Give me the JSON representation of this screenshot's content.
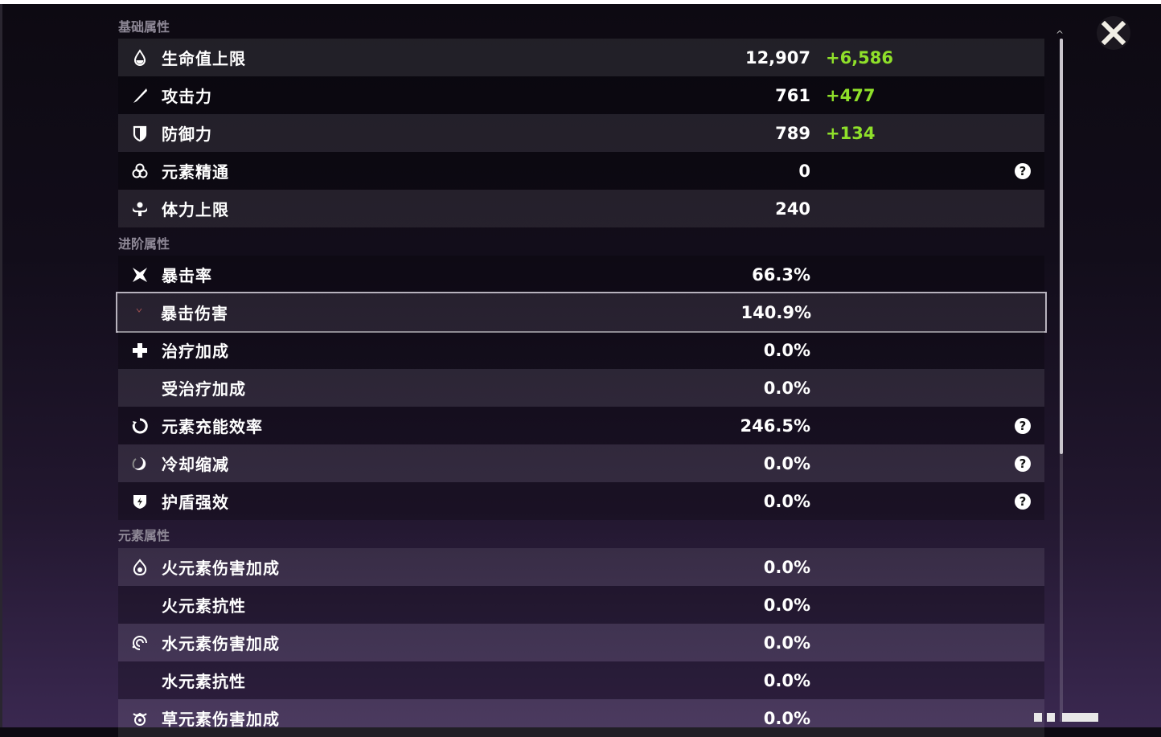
{
  "sections": [
    {
      "title": "基础属性",
      "rows": [
        {
          "icon": "hp-drop-icon",
          "label": "生命值上限",
          "value": "12,907",
          "bonus": "+6,586"
        },
        {
          "icon": "sword-icon",
          "label": "攻击力",
          "value": "761",
          "bonus": "+477"
        },
        {
          "icon": "shield-icon",
          "label": "防御力",
          "value": "789",
          "bonus": "+134"
        },
        {
          "icon": "elemental-mastery-icon",
          "label": "元素精通",
          "value": "0",
          "help": true
        },
        {
          "icon": "stamina-icon",
          "label": "体力上限",
          "value": "240"
        }
      ]
    },
    {
      "title": "进阶属性",
      "rows": [
        {
          "icon": "crit-rate-icon",
          "label": "暴击率",
          "value": "66.3%"
        },
        {
          "icon": "crit-dmg-icon",
          "label": "暴击伤害",
          "value": "140.9%",
          "selected": true
        },
        {
          "icon": "healing-cross-icon",
          "label": "治疗加成",
          "value": "0.0%"
        },
        {
          "icon": "",
          "label": "受治疗加成",
          "value": "0.0%"
        },
        {
          "icon": "energy-recharge-icon",
          "label": "元素充能效率",
          "value": "246.5%",
          "help": true
        },
        {
          "icon": "cooldown-icon",
          "label": "冷却缩减",
          "value": "0.0%",
          "help": true
        },
        {
          "icon": "shield-strength-icon",
          "label": "护盾强效",
          "value": "0.0%",
          "help": true
        }
      ]
    },
    {
      "title": "元素属性",
      "rows": [
        {
          "icon": "pyro-icon",
          "label": "火元素伤害加成",
          "value": "0.0%"
        },
        {
          "icon": "",
          "label": "火元素抗性",
          "value": "0.0%"
        },
        {
          "icon": "hydro-icon",
          "label": "水元素伤害加成",
          "value": "0.0%"
        },
        {
          "icon": "",
          "label": "水元素抗性",
          "value": "0.0%"
        },
        {
          "icon": "dendro-icon",
          "label": "草元素伤害加成",
          "value": "0.0%"
        }
      ]
    }
  ],
  "help_glyph": "?",
  "colors": {
    "bonus": "#8fe02a",
    "section_title": "#8e8896",
    "selected_border": "#b7b2bd"
  }
}
